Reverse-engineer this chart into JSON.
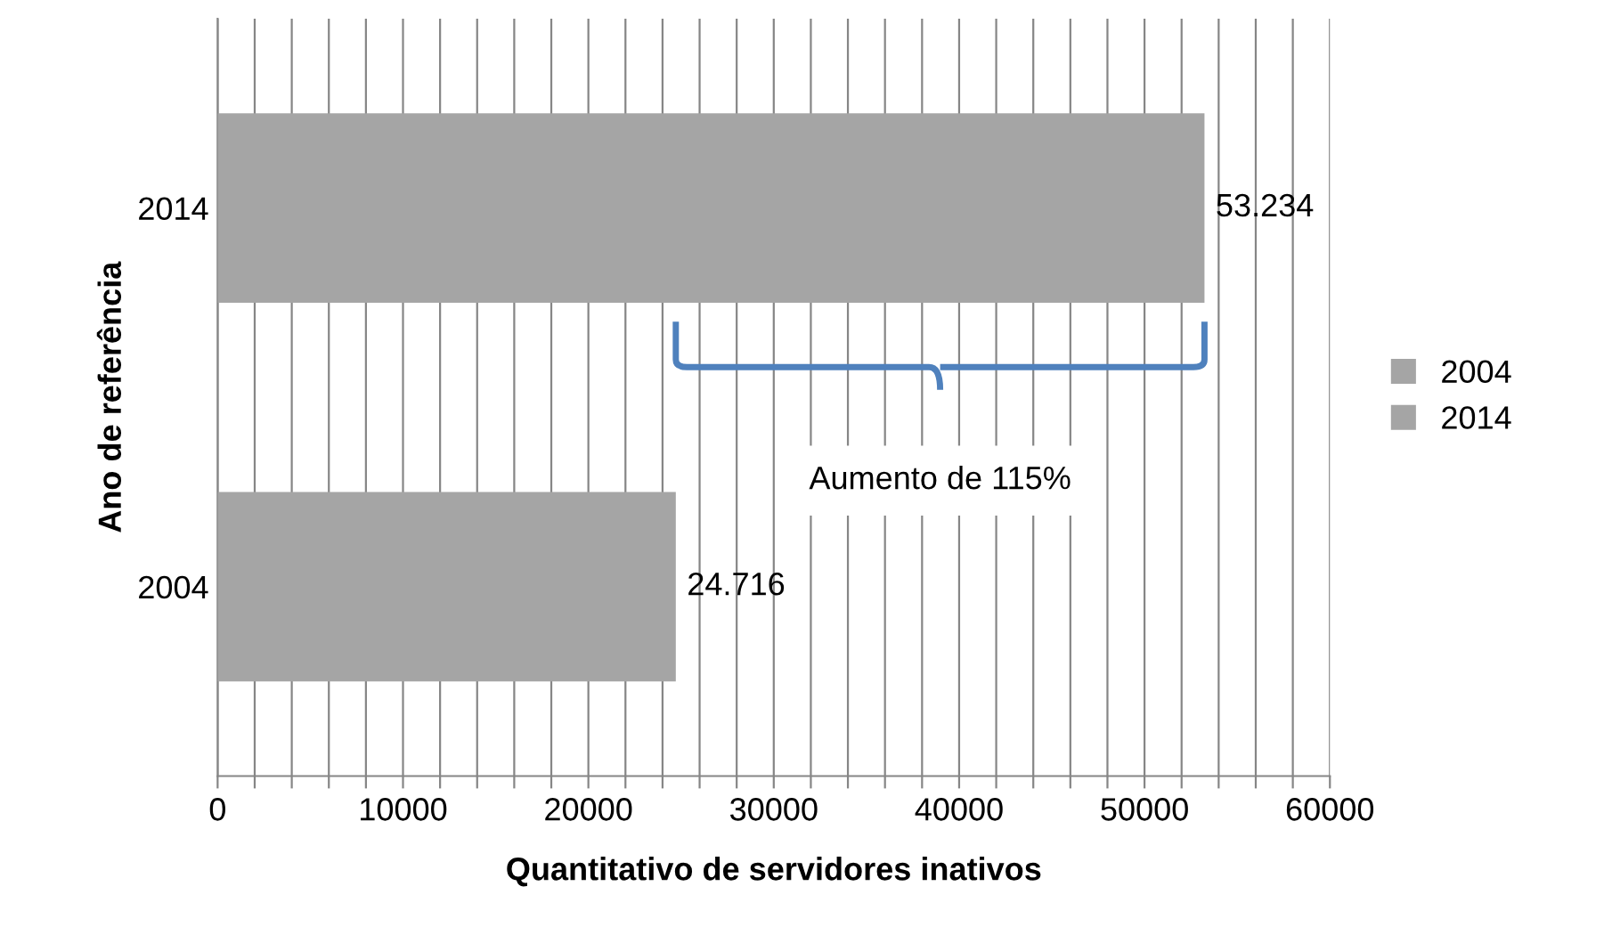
{
  "chart_data": {
    "type": "bar",
    "orientation": "horizontal",
    "xlabel": "Quantitativo de servidores inativos",
    "ylabel": "Ano de referência",
    "categories": [
      "2014",
      "2004"
    ],
    "series": [
      {
        "name": "2004",
        "color": "#a5a5a5",
        "values": [
          null,
          24716
        ],
        "value_labels": [
          null,
          "24.716"
        ]
      },
      {
        "name": "2014",
        "color": "#a5a5a5",
        "values": [
          53234,
          null
        ],
        "value_labels": [
          "53.234",
          null
        ]
      }
    ],
    "xlim": [
      0,
      60000
    ],
    "xticks": [
      0,
      {
        "value": 2000,
        "label": null
      },
      {
        "value": 4000,
        "label": null
      },
      {
        "value": 6000,
        "label": null
      },
      {
        "value": 8000,
        "label": null
      },
      10000,
      {
        "value": 12000,
        "label": null
      },
      {
        "value": 14000,
        "label": null
      },
      {
        "value": 16000,
        "label": null
      },
      {
        "value": 18000,
        "label": null
      },
      20000,
      {
        "value": 22000,
        "label": null
      },
      {
        "value": 24000,
        "label": null
      },
      {
        "value": 26000,
        "label": null
      },
      {
        "value": 28000,
        "label": null
      },
      30000,
      {
        "value": 32000,
        "label": null
      },
      {
        "value": 34000,
        "label": null
      },
      {
        "value": 36000,
        "label": null
      },
      {
        "value": 38000,
        "label": null
      },
      40000,
      {
        "value": 42000,
        "label": null
      },
      {
        "value": 44000,
        "label": null
      },
      {
        "value": 46000,
        "label": null
      },
      {
        "value": 48000,
        "label": null
      },
      50000,
      {
        "value": 52000,
        "label": null
      },
      {
        "value": 54000,
        "label": null
      },
      {
        "value": 56000,
        "label": null
      },
      {
        "value": 58000,
        "label": null
      },
      60000
    ],
    "grid": "x",
    "legend": "right",
    "annotations": [
      "Aumento de 115%"
    ]
  }
}
